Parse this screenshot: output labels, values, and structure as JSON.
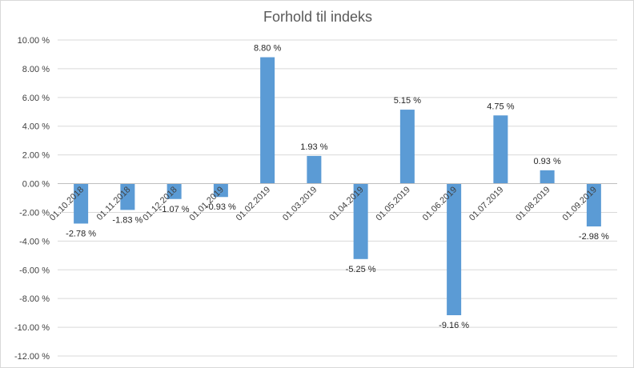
{
  "chart_data": {
    "type": "bar",
    "title": "Forhold til indeks",
    "categories": [
      "01.10.2018",
      "01.11.2018",
      "01.12.2018",
      "01.01.2019",
      "01.02.2019",
      "01.03.2019",
      "01.04.2019",
      "01.05.2019",
      "01.06.2019",
      "01.07.2019",
      "01.08.2019",
      "01.09.2019"
    ],
    "values": [
      -2.78,
      -1.83,
      -1.07,
      -0.93,
      8.8,
      1.93,
      -5.25,
      5.15,
      -9.16,
      4.75,
      0.93,
      -2.98
    ],
    "data_labels": [
      "-2.78 %",
      "-1.83 %",
      "-1.07 %",
      "-0.93 %",
      "8.80 %",
      "1.93 %",
      "-5.25 %",
      "5.15 %",
      "-9.16 %",
      "4.75 %",
      "0.93 %",
      "-2.98 %"
    ],
    "ylim": [
      -12,
      10
    ],
    "yticks": [
      10,
      8,
      6,
      4,
      2,
      0,
      -2,
      -4,
      -6,
      -8,
      -10,
      -12
    ],
    "ytick_labels": [
      "10.00 %",
      "8.00 %",
      "6.00 %",
      "4.00 %",
      "2.00 %",
      "0.00 %",
      "-2.00 %",
      "-4.00 %",
      "-6.00 %",
      "-8.00 %",
      "-10.00 %",
      "-12.00 %"
    ],
    "grid": true,
    "legend": "none",
    "bar_color": "#5b9bd5",
    "grid_color": "#d9d9d9"
  }
}
